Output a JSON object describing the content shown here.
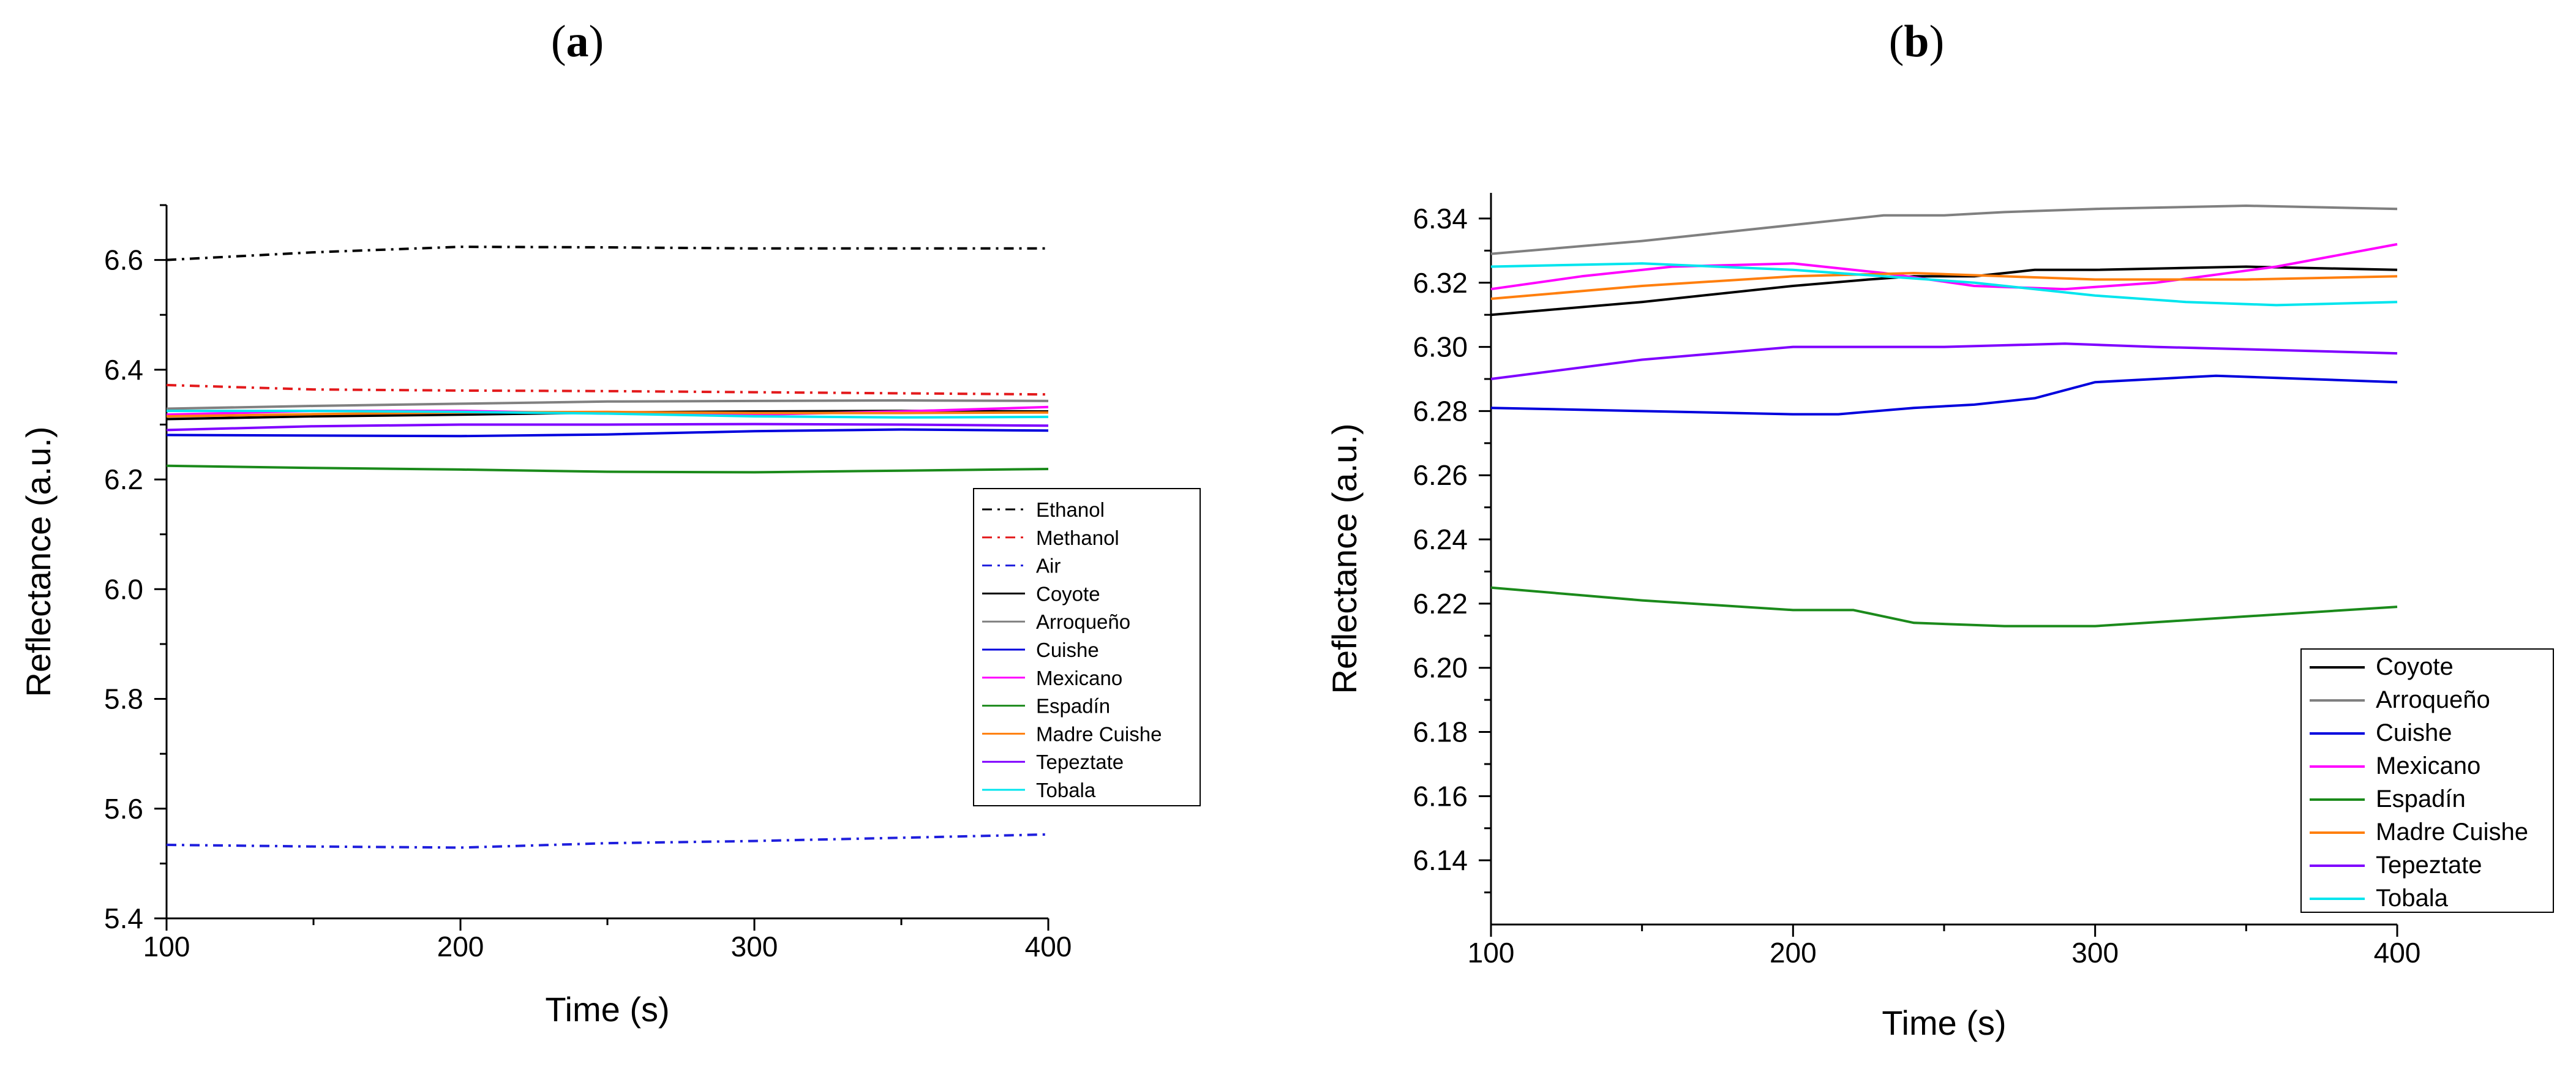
{
  "charts": [
    {
      "id": "a",
      "panel_letter": "a",
      "paren_open": "(",
      "paren_close": ")",
      "type": "line",
      "title": "(a)",
      "xlabel": "Time (s)",
      "ylabel": "Reflectance (a.u.)",
      "xlim": [
        100,
        400
      ],
      "ylim": [
        5.4,
        6.7
      ],
      "xticks": [
        100,
        200,
        300,
        400
      ],
      "xtick_labels": [
        "100",
        "200",
        "300",
        "400"
      ],
      "yticks": [
        5.4,
        5.6,
        5.8,
        6.0,
        6.2,
        6.4,
        6.6
      ],
      "ytick_labels": [
        "5.4",
        "5.6",
        "5.8",
        "6.0",
        "6.2",
        "6.4",
        "6.6"
      ],
      "legend_position": "right-middle",
      "series": [
        {
          "name": "Ethanol",
          "color": "#000000",
          "dash": "dashdot",
          "x": [
            100,
            150,
            200,
            250,
            300,
            350,
            400
          ],
          "y": [
            6.6,
            6.614,
            6.624,
            6.623,
            6.621,
            6.621,
            6.621
          ]
        },
        {
          "name": "Methanol",
          "color": "#e31a1c",
          "dash": "dashdot",
          "x": [
            100,
            150,
            200,
            250,
            300,
            350,
            400
          ],
          "y": [
            6.372,
            6.364,
            6.362,
            6.361,
            6.359,
            6.357,
            6.355
          ]
        },
        {
          "name": "Air",
          "color": "#1f1fdd",
          "dash": "dashdot",
          "x": [
            100,
            150,
            200,
            250,
            300,
            350,
            400
          ],
          "y": [
            5.534,
            5.531,
            5.529,
            5.537,
            5.541,
            5.547,
            5.553
          ]
        },
        {
          "name": "Coyote",
          "color": "#000000",
          "dash": "solid",
          "x": [
            100,
            150,
            200,
            250,
            300,
            350,
            400
          ],
          "y": [
            6.31,
            6.315,
            6.318,
            6.322,
            6.324,
            6.325,
            6.324
          ]
        },
        {
          "name": "Arroqueño",
          "color": "#808080",
          "dash": "solid",
          "x": [
            100,
            150,
            200,
            250,
            300,
            350,
            400
          ],
          "y": [
            6.329,
            6.334,
            6.338,
            6.342,
            6.343,
            6.344,
            6.343
          ]
        },
        {
          "name": "Cuishe",
          "color": "#0000dd",
          "dash": "solid",
          "x": [
            100,
            150,
            200,
            250,
            300,
            350,
            400
          ],
          "y": [
            6.281,
            6.28,
            6.279,
            6.282,
            6.288,
            6.291,
            6.289
          ]
        },
        {
          "name": "Mexicano",
          "color": "#ff00ff",
          "dash": "solid",
          "x": [
            100,
            150,
            200,
            250,
            300,
            350,
            400
          ],
          "y": [
            6.318,
            6.325,
            6.325,
            6.32,
            6.318,
            6.324,
            6.332
          ]
        },
        {
          "name": "Espadín",
          "color": "#1b8a1b",
          "dash": "solid",
          "x": [
            100,
            150,
            200,
            250,
            300,
            350,
            400
          ],
          "y": [
            6.225,
            6.221,
            6.218,
            6.214,
            6.213,
            6.216,
            6.219
          ]
        },
        {
          "name": "Madre Cuishe",
          "color": "#ff7f0e",
          "dash": "solid",
          "x": [
            100,
            150,
            200,
            250,
            300,
            350,
            400
          ],
          "y": [
            6.315,
            6.319,
            6.322,
            6.323,
            6.321,
            6.321,
            6.322
          ]
        },
        {
          "name": "Tepeztate",
          "color": "#7f00ff",
          "dash": "solid",
          "x": [
            100,
            150,
            200,
            250,
            300,
            350,
            400
          ],
          "y": [
            6.29,
            6.297,
            6.3,
            6.3,
            6.301,
            6.3,
            6.298
          ]
        },
        {
          "name": "Tobala",
          "color": "#00e5ee",
          "dash": "solid",
          "x": [
            100,
            150,
            200,
            250,
            300,
            350,
            400
          ],
          "y": [
            6.325,
            6.325,
            6.323,
            6.32,
            6.315,
            6.313,
            6.314
          ]
        }
      ]
    },
    {
      "id": "b",
      "panel_letter": "b",
      "paren_open": "(",
      "paren_close": ")",
      "type": "line",
      "title": "(b)",
      "xlabel": "Time (s)",
      "ylabel": "Reflectance (a.u.)",
      "xlim": [
        100,
        400
      ],
      "ylim": [
        6.12,
        6.348
      ],
      "xticks": [
        100,
        200,
        300,
        400
      ],
      "xtick_labels": [
        "100",
        "200",
        "300",
        "400"
      ],
      "yticks": [
        6.14,
        6.16,
        6.18,
        6.2,
        6.22,
        6.24,
        6.26,
        6.28,
        6.3,
        6.32,
        6.34
      ],
      "ytick_labels": [
        "6.14",
        "6.16",
        "6.18",
        "6.20",
        "6.22",
        "6.24",
        "6.26",
        "6.28",
        "6.30",
        "6.32",
        "6.34"
      ],
      "legend_position": "bottom-right",
      "series": [
        {
          "name": "Coyote",
          "color": "#000000",
          "dash": "solid",
          "x": [
            100,
            150,
            200,
            225,
            240,
            260,
            280,
            300,
            350,
            400
          ],
          "y": [
            6.31,
            6.314,
            6.319,
            6.321,
            6.322,
            6.322,
            6.324,
            6.324,
            6.325,
            6.324
          ]
        },
        {
          "name": "Arroqueño",
          "color": "#808080",
          "dash": "solid",
          "x": [
            100,
            150,
            200,
            230,
            250,
            270,
            300,
            350,
            400
          ],
          "y": [
            6.329,
            6.333,
            6.338,
            6.341,
            6.341,
            6.342,
            6.343,
            6.344,
            6.343
          ]
        },
        {
          "name": "Cuishe",
          "color": "#0000dd",
          "dash": "solid",
          "x": [
            100,
            150,
            200,
            215,
            240,
            260,
            280,
            300,
            340,
            400
          ],
          "y": [
            6.281,
            6.28,
            6.279,
            6.279,
            6.281,
            6.282,
            6.284,
            6.289,
            6.291,
            6.289
          ]
        },
        {
          "name": "Mexicano",
          "color": "#ff00ff",
          "dash": "solid",
          "x": [
            100,
            130,
            160,
            200,
            230,
            260,
            290,
            320,
            360,
            400
          ],
          "y": [
            6.318,
            6.322,
            6.325,
            6.326,
            6.323,
            6.319,
            6.318,
            6.32,
            6.325,
            6.332
          ]
        },
        {
          "name": "Espadín",
          "color": "#1b8a1b",
          "dash": "solid",
          "x": [
            100,
            150,
            200,
            220,
            240,
            270,
            300,
            350,
            400
          ],
          "y": [
            6.225,
            6.221,
            6.218,
            6.218,
            6.214,
            6.213,
            6.213,
            6.216,
            6.219
          ]
        },
        {
          "name": "Madre Cuishe",
          "color": "#ff7f0e",
          "dash": "solid",
          "x": [
            100,
            150,
            200,
            240,
            270,
            300,
            350,
            400
          ],
          "y": [
            6.315,
            6.319,
            6.322,
            6.323,
            6.322,
            6.321,
            6.321,
            6.322
          ]
        },
        {
          "name": "Tepeztate",
          "color": "#7f00ff",
          "dash": "solid",
          "x": [
            100,
            150,
            200,
            220,
            250,
            290,
            320,
            360,
            400
          ],
          "y": [
            6.29,
            6.296,
            6.3,
            6.3,
            6.3,
            6.301,
            6.3,
            6.299,
            6.298
          ]
        },
        {
          "name": "Tobala",
          "color": "#00e5ee",
          "dash": "solid",
          "x": [
            100,
            150,
            200,
            230,
            260,
            300,
            330,
            360,
            400
          ],
          "y": [
            6.325,
            6.326,
            6.324,
            6.322,
            6.32,
            6.316,
            6.314,
            6.313,
            6.314
          ]
        }
      ]
    }
  ]
}
